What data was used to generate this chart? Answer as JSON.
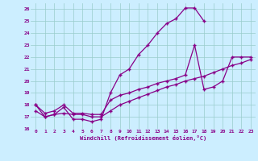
{
  "xlabel": "Windchill (Refroidissement éolien,°C)",
  "bg_color": "#cceeff",
  "grid_color": "#99cccc",
  "line_color": "#880088",
  "xlim": [
    -0.5,
    23.5
  ],
  "ylim": [
    16,
    26.5
  ],
  "yticks": [
    16,
    17,
    18,
    19,
    20,
    21,
    22,
    23,
    24,
    25,
    26
  ],
  "xticks": [
    0,
    1,
    2,
    3,
    4,
    5,
    6,
    7,
    8,
    9,
    10,
    11,
    12,
    13,
    14,
    15,
    16,
    17,
    18,
    19,
    20,
    21,
    22,
    23
  ],
  "line1_x": [
    0,
    1,
    2,
    3,
    4,
    5,
    6,
    7,
    8,
    9,
    10,
    11,
    12,
    13,
    14,
    15,
    16,
    17,
    18
  ],
  "line1_y": [
    18.0,
    17.0,
    17.2,
    17.8,
    16.8,
    16.8,
    16.6,
    16.8,
    19.0,
    20.5,
    21.0,
    22.2,
    23.0,
    24.0,
    24.8,
    25.2,
    26.1,
    26.1,
    25.0
  ],
  "line2_x": [
    0,
    1,
    2,
    3,
    4,
    5,
    6,
    7,
    8,
    9,
    10,
    11,
    12,
    13,
    14,
    15,
    16,
    17,
    18,
    19,
    20,
    21,
    22,
    23
  ],
  "line2_y": [
    18.0,
    17.3,
    17.5,
    18.0,
    17.3,
    17.3,
    17.2,
    17.2,
    18.4,
    18.8,
    19.0,
    19.3,
    19.5,
    19.8,
    20.0,
    20.2,
    20.5,
    23.0,
    19.3,
    19.5,
    20.0,
    22.0,
    22.0,
    22.0
  ],
  "line3_x": [
    0,
    1,
    2,
    3,
    4,
    5,
    6,
    7,
    8,
    9,
    10,
    11,
    12,
    13,
    14,
    15,
    16,
    17,
    18,
    19,
    20,
    21,
    22,
    23
  ],
  "line3_y": [
    17.5,
    17.0,
    17.2,
    17.3,
    17.2,
    17.2,
    17.0,
    17.0,
    17.5,
    18.0,
    18.3,
    18.6,
    18.9,
    19.2,
    19.5,
    19.7,
    20.0,
    20.2,
    20.4,
    20.7,
    21.0,
    21.3,
    21.5,
    21.8
  ]
}
